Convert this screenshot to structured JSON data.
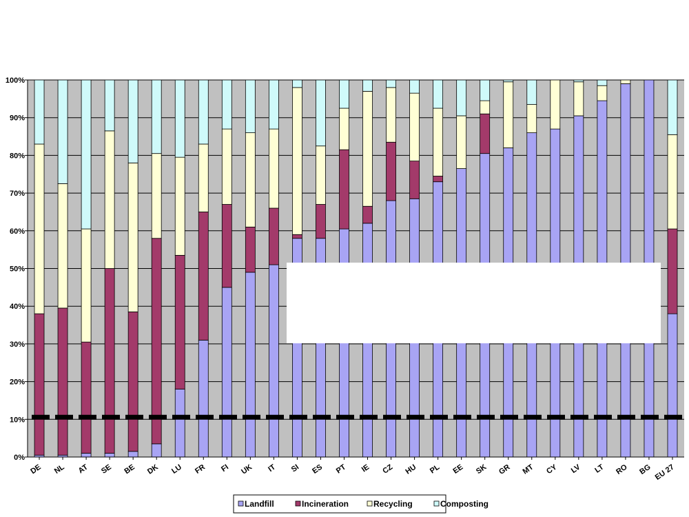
{
  "chart_data": {
    "type": "bar",
    "stacked": true,
    "categories": [
      "DE",
      "NL",
      "AT",
      "SE",
      "BE",
      "DK",
      "LU",
      "FR",
      "FI",
      "UK",
      "IT",
      "SI",
      "ES",
      "PT",
      "IE",
      "CZ",
      "HU",
      "PL",
      "EE",
      "SK",
      "GR",
      "MT",
      "CY",
      "LV",
      "LT",
      "RO",
      "BG",
      "EU 27"
    ],
    "series": [
      {
        "name": "Landfill",
        "color": "#a8a4f4",
        "values": [
          0.5,
          0.5,
          1,
          1,
          1.5,
          3.5,
          18,
          31,
          45,
          49,
          51,
          58,
          58,
          60.5,
          62,
          68,
          68.5,
          73,
          76.5,
          80.5,
          82,
          86,
          87,
          90.5,
          94.5,
          99,
          100,
          38
        ]
      },
      {
        "name": "Incineration",
        "color": "#a33a6a",
        "values": [
          37.5,
          39,
          29.5,
          49,
          37,
          54.5,
          35.5,
          34,
          22,
          12,
          15,
          1,
          9,
          21,
          4.5,
          15.5,
          10,
          1.5,
          0,
          10.5,
          0,
          0,
          0,
          0,
          0,
          0,
          0,
          22.5
        ]
      },
      {
        "name": "Recycling",
        "color": "#ffffd5",
        "values": [
          45,
          33,
          30,
          36.5,
          39.5,
          22.5,
          26,
          18,
          20,
          25,
          21,
          39,
          15.5,
          11,
          30.5,
          14.5,
          18,
          18,
          14,
          3.5,
          17.5,
          7.5,
          13,
          9,
          4,
          1,
          0,
          25
        ]
      },
      {
        "name": "Composting",
        "color": "#cffafa",
        "values": [
          17,
          27.5,
          39.5,
          13.5,
          22,
          19.5,
          20.5,
          17,
          13,
          14,
          13,
          2,
          17.5,
          7.5,
          3,
          2,
          3.5,
          7.5,
          9.5,
          5.5,
          0.5,
          6.5,
          0,
          0.5,
          1.5,
          0,
          0,
          14.5
        ]
      }
    ],
    "y_ticks": [
      "0%",
      "10%",
      "20%",
      "30%",
      "40%",
      "50%",
      "60%",
      "70%",
      "80%",
      "90%",
      "100%"
    ],
    "ylim": [
      0,
      100
    ],
    "reference_line_value": 10,
    "grid": true,
    "legend_position": "bottom",
    "colors": {
      "plot_background": "#c0c0c0",
      "gridline": "#000000",
      "bar_outline": "#000000",
      "reference_line": "#000000",
      "overlay_box": "#ffffff"
    }
  }
}
